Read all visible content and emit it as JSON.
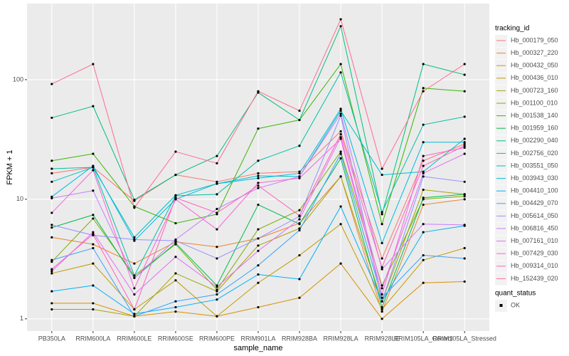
{
  "chart_data": {
    "type": "line",
    "y_label": "FPKM + 1",
    "x_label": "sample_name",
    "log_y": true,
    "grid": true,
    "legend_title": "tracking_id",
    "legend_position": "right",
    "shape_legend_title": "quant_status",
    "shape_legend_labels": [
      "OK"
    ],
    "categories": [
      "PB350LA",
      "RRIM600LA",
      "RRIM600LE",
      "RRIM600SE",
      "RRIM600PE",
      "RRIM901LA",
      "RRIM928BA",
      "RRIM928LA",
      "RRIM928LE",
      "RRIM105LA_Control",
      "RRIM105LA_Stressed"
    ],
    "ylim": [
      0.79,
      433
    ],
    "yticks": [
      1,
      10,
      100
    ],
    "series": [
      {
        "name": "Hb_000179_050",
        "color": "#F8766D",
        "values": [
          16.5,
          18.5,
          9.7,
          16,
          14,
          16.5,
          17,
          37,
          3.2,
          21,
          29
        ]
      },
      {
        "name": "Hb_000327_220",
        "color": "#EA8331",
        "values": [
          4.8,
          4.2,
          2.9,
          4.4,
          4.0,
          4.7,
          6.3,
          15.5,
          1.15,
          9,
          10
        ]
      },
      {
        "name": "Hb_000432_050",
        "color": "#D89000",
        "values": [
          1.35,
          1.35,
          1.05,
          1.15,
          1.05,
          1.25,
          1.5,
          2.9,
          1.0,
          2.0,
          2.05
        ]
      },
      {
        "name": "Hb_000436_010",
        "color": "#C09B00",
        "values": [
          2.4,
          2.9,
          1.2,
          2.1,
          1.05,
          2.0,
          3.4,
          6.2,
          1.2,
          3.1,
          3.9
        ]
      },
      {
        "name": "Hb_000723_160",
        "color": "#A3A500",
        "values": [
          1.2,
          1.2,
          1.05,
          2.4,
          1.7,
          4.1,
          5.7,
          15.5,
          1.4,
          12,
          11
        ]
      },
      {
        "name": "Hb_001100_010",
        "color": "#7CAE00",
        "values": [
          3.0,
          6.9,
          2.3,
          4.2,
          1.75,
          5.6,
          8.1,
          25,
          1.9,
          10,
          10.6
        ]
      },
      {
        "name": "Hb_001538_140",
        "color": "#39B600",
        "values": [
          21,
          24,
          8.7,
          6.3,
          7.5,
          39,
          46,
          135,
          6.2,
          85,
          80
        ]
      },
      {
        "name": "Hb_001959_160",
        "color": "#00BB4E",
        "values": [
          5.8,
          7.4,
          2.2,
          4.3,
          1.9,
          9,
          6.2,
          22,
          1.25,
          10.3,
          11
        ]
      },
      {
        "name": "Hb_002290_040",
        "color": "#00BF7D",
        "values": [
          48,
          60,
          9.9,
          16,
          23,
          78,
          46,
          280,
          7.5,
          135,
          110
        ]
      },
      {
        "name": "Hb_002756_020",
        "color": "#00C1A3",
        "values": [
          18,
          18.5,
          2.3,
          10.7,
          11,
          21,
          28,
          115,
          7.8,
          42,
          49
        ]
      },
      {
        "name": "Hb_003551_050",
        "color": "#00BFC4",
        "values": [
          14,
          18.5,
          4.8,
          10.8,
          13.5,
          15.7,
          15.5,
          55,
          16,
          17,
          32
        ]
      },
      {
        "name": "Hb_003943_030",
        "color": "#00BAE0",
        "values": [
          10.5,
          19,
          4.5,
          10,
          13.5,
          15,
          16.5,
          57,
          4.3,
          30,
          30
        ]
      },
      {
        "name": "Hb_004410_100",
        "color": "#00B0F6",
        "values": [
          1.7,
          1.9,
          1.1,
          1.25,
          1.45,
          2.35,
          2.15,
          8.7,
          1.4,
          5.3,
          6.0
        ]
      },
      {
        "name": "Hb_004429_070",
        "color": "#35A2FF",
        "values": [
          3.1,
          3.9,
          1.05,
          1.4,
          1.6,
          2.8,
          5.5,
          24,
          1.5,
          3.4,
          3.2
        ]
      },
      {
        "name": "Hb_005614_050",
        "color": "#9590FF",
        "values": [
          6.1,
          5.0,
          4.6,
          4.5,
          3.2,
          4.7,
          7.2,
          50,
          1.4,
          15.5,
          14
        ]
      },
      {
        "name": "Hb_006816_450",
        "color": "#C77CFF",
        "values": [
          10.2,
          11.8,
          2.2,
          4.6,
          8.3,
          12.4,
          15.5,
          52,
          2.6,
          6.2,
          6.1
        ]
      },
      {
        "name": "Hb_007161_010",
        "color": "#E76BF3",
        "values": [
          2.5,
          5.3,
          1.6,
          3.3,
          1.85,
          3.7,
          6.8,
          33,
          1.8,
          16.5,
          24
        ]
      },
      {
        "name": "Hb_007429_030",
        "color": "#FA62DB",
        "values": [
          7.7,
          17.5,
          1.8,
          10,
          5.6,
          13.7,
          15,
          32,
          1.6,
          23,
          27
        ]
      },
      {
        "name": "Hb_009314_010",
        "color": "#FF62BC",
        "values": [
          2.6,
          5.1,
          1.2,
          10.3,
          7.7,
          13,
          7.3,
          35,
          2.7,
          19,
          28
        ]
      },
      {
        "name": "Hb_152439_020",
        "color": "#FF6C90",
        "values": [
          92,
          135,
          8.5,
          25,
          20,
          80,
          55,
          320,
          18,
          80,
          135
        ]
      }
    ]
  }
}
